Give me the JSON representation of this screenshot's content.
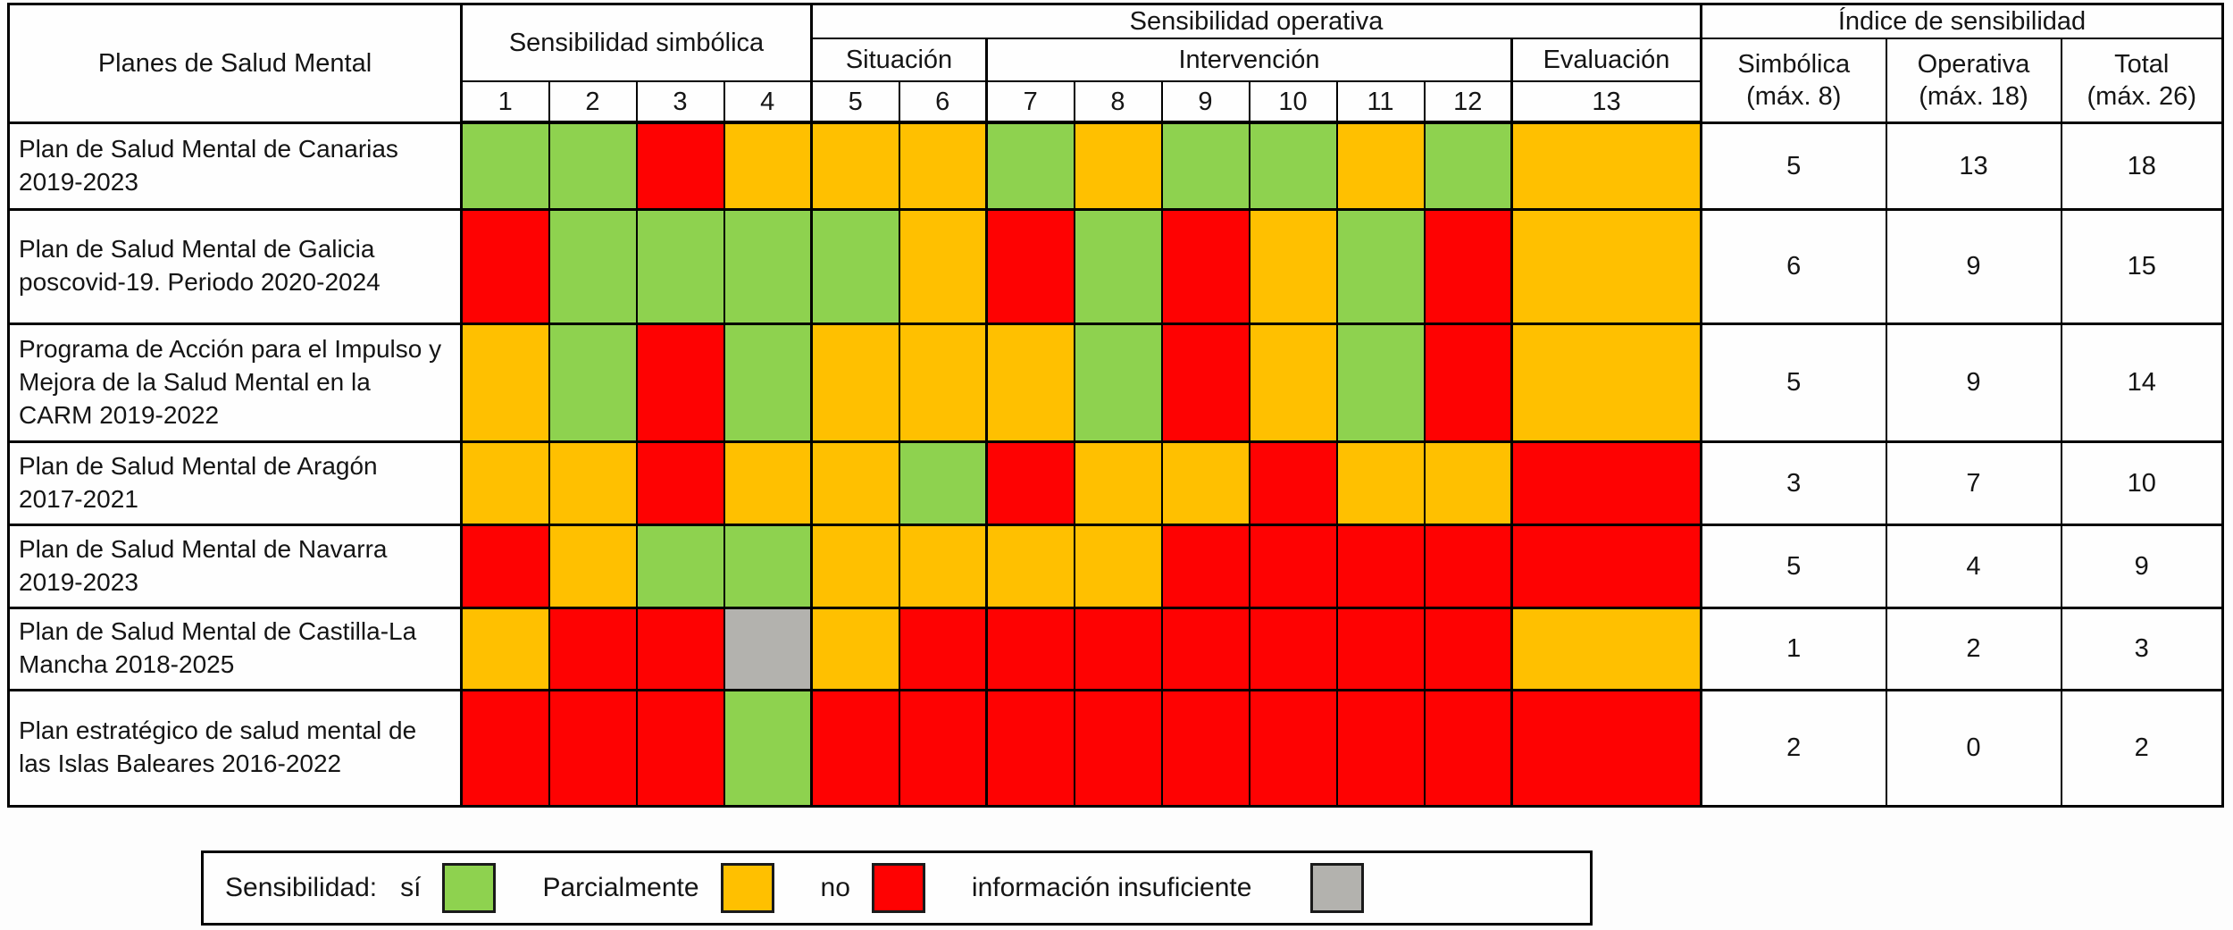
{
  "chart_data": {
    "type": "heatmap",
    "headers": {
      "plans": "Planes de Salud Mental",
      "group_simbolica": "Sensibilidad simbólica",
      "group_operativa": "Sensibilidad operativa",
      "group_indice": "Índice de sensibilidad",
      "sub_situacion": "Situación",
      "sub_intervencion": "Intervención",
      "sub_evaluacion": "Evaluación",
      "item_numbers": [
        "1",
        "2",
        "3",
        "4",
        "5",
        "6",
        "7",
        "8",
        "9",
        "10",
        "11",
        "12",
        "13"
      ],
      "score_cols": [
        {
          "line1": "Simbólica",
          "line2": "(máx. 8)"
        },
        {
          "line1": "Operativa",
          "line2": "(máx. 18)"
        },
        {
          "line1": "Total",
          "line2": "(máx. 26)"
        }
      ]
    },
    "rating_meaning": {
      "green": "sí",
      "orange": "no... partially — Parcialmente",
      "red": "no",
      "gray": "información insuficiente"
    },
    "rows": [
      {
        "plan": "Plan de Salud Mental de Canarias 2019-2023",
        "ratings": [
          "green",
          "green",
          "red",
          "orange",
          "orange",
          "orange",
          "green",
          "orange",
          "green",
          "green",
          "orange",
          "green",
          "orange"
        ],
        "simbolica": "5",
        "operativa": "13",
        "total": "18"
      },
      {
        "plan": "Plan de Salud Mental de Galicia poscovid-19. Periodo 2020-2024",
        "ratings": [
          "red",
          "green",
          "green",
          "green",
          "green",
          "orange",
          "red",
          "green",
          "red",
          "orange",
          "green",
          "red",
          "orange"
        ],
        "simbolica": "6",
        "operativa": "9",
        "total": "15"
      },
      {
        "plan": "Programa de Acción para el Impulso y Mejora de la Salud Mental en la CARM 2019-2022",
        "ratings": [
          "orange",
          "green",
          "red",
          "green",
          "orange",
          "orange",
          "orange",
          "green",
          "red",
          "orange",
          "green",
          "red",
          "orange"
        ],
        "simbolica": "5",
        "operativa": "9",
        "total": "14"
      },
      {
        "plan": "Plan de Salud Mental de Aragón 2017-2021",
        "ratings": [
          "orange",
          "orange",
          "red",
          "orange",
          "orange",
          "green",
          "red",
          "orange",
          "orange",
          "red",
          "orange",
          "orange",
          "red"
        ],
        "simbolica": "3",
        "operativa": "7",
        "total": "10"
      },
      {
        "plan": "Plan de Salud Mental de Navarra 2019-2023",
        "ratings": [
          "red",
          "orange",
          "green",
          "green",
          "orange",
          "orange",
          "orange",
          "orange",
          "red",
          "red",
          "red",
          "red",
          "red"
        ],
        "simbolica": "5",
        "operativa": "4",
        "total": "9"
      },
      {
        "plan": "Plan de Salud Mental de Castilla-La Mancha 2018-2025",
        "ratings": [
          "orange",
          "red",
          "red",
          "gray",
          "orange",
          "red",
          "red",
          "red",
          "red",
          "red",
          "red",
          "red",
          "orange"
        ],
        "simbolica": "1",
        "operativa": "2",
        "total": "3"
      },
      {
        "plan": "Plan estratégico de salud mental de las Islas Baleares 2016-2022",
        "ratings": [
          "red",
          "red",
          "red",
          "green",
          "red",
          "red",
          "red",
          "red",
          "red",
          "red",
          "red",
          "red",
          "red"
        ],
        "simbolica": "2",
        "operativa": "0",
        "total": "2"
      }
    ]
  },
  "legend": {
    "title": "Sensibilidad:",
    "items": [
      {
        "label": "sí",
        "color_key": "green"
      },
      {
        "label": "Parcialmente",
        "color_key": "orange"
      },
      {
        "label": "no",
        "color_key": "red"
      },
      {
        "label": "información insuficiente",
        "color_key": "gray"
      }
    ]
  },
  "colors": {
    "green": "#8ED24F",
    "orange": "#FFC000",
    "red": "#FE0202",
    "gray": "#B3B2AE"
  }
}
